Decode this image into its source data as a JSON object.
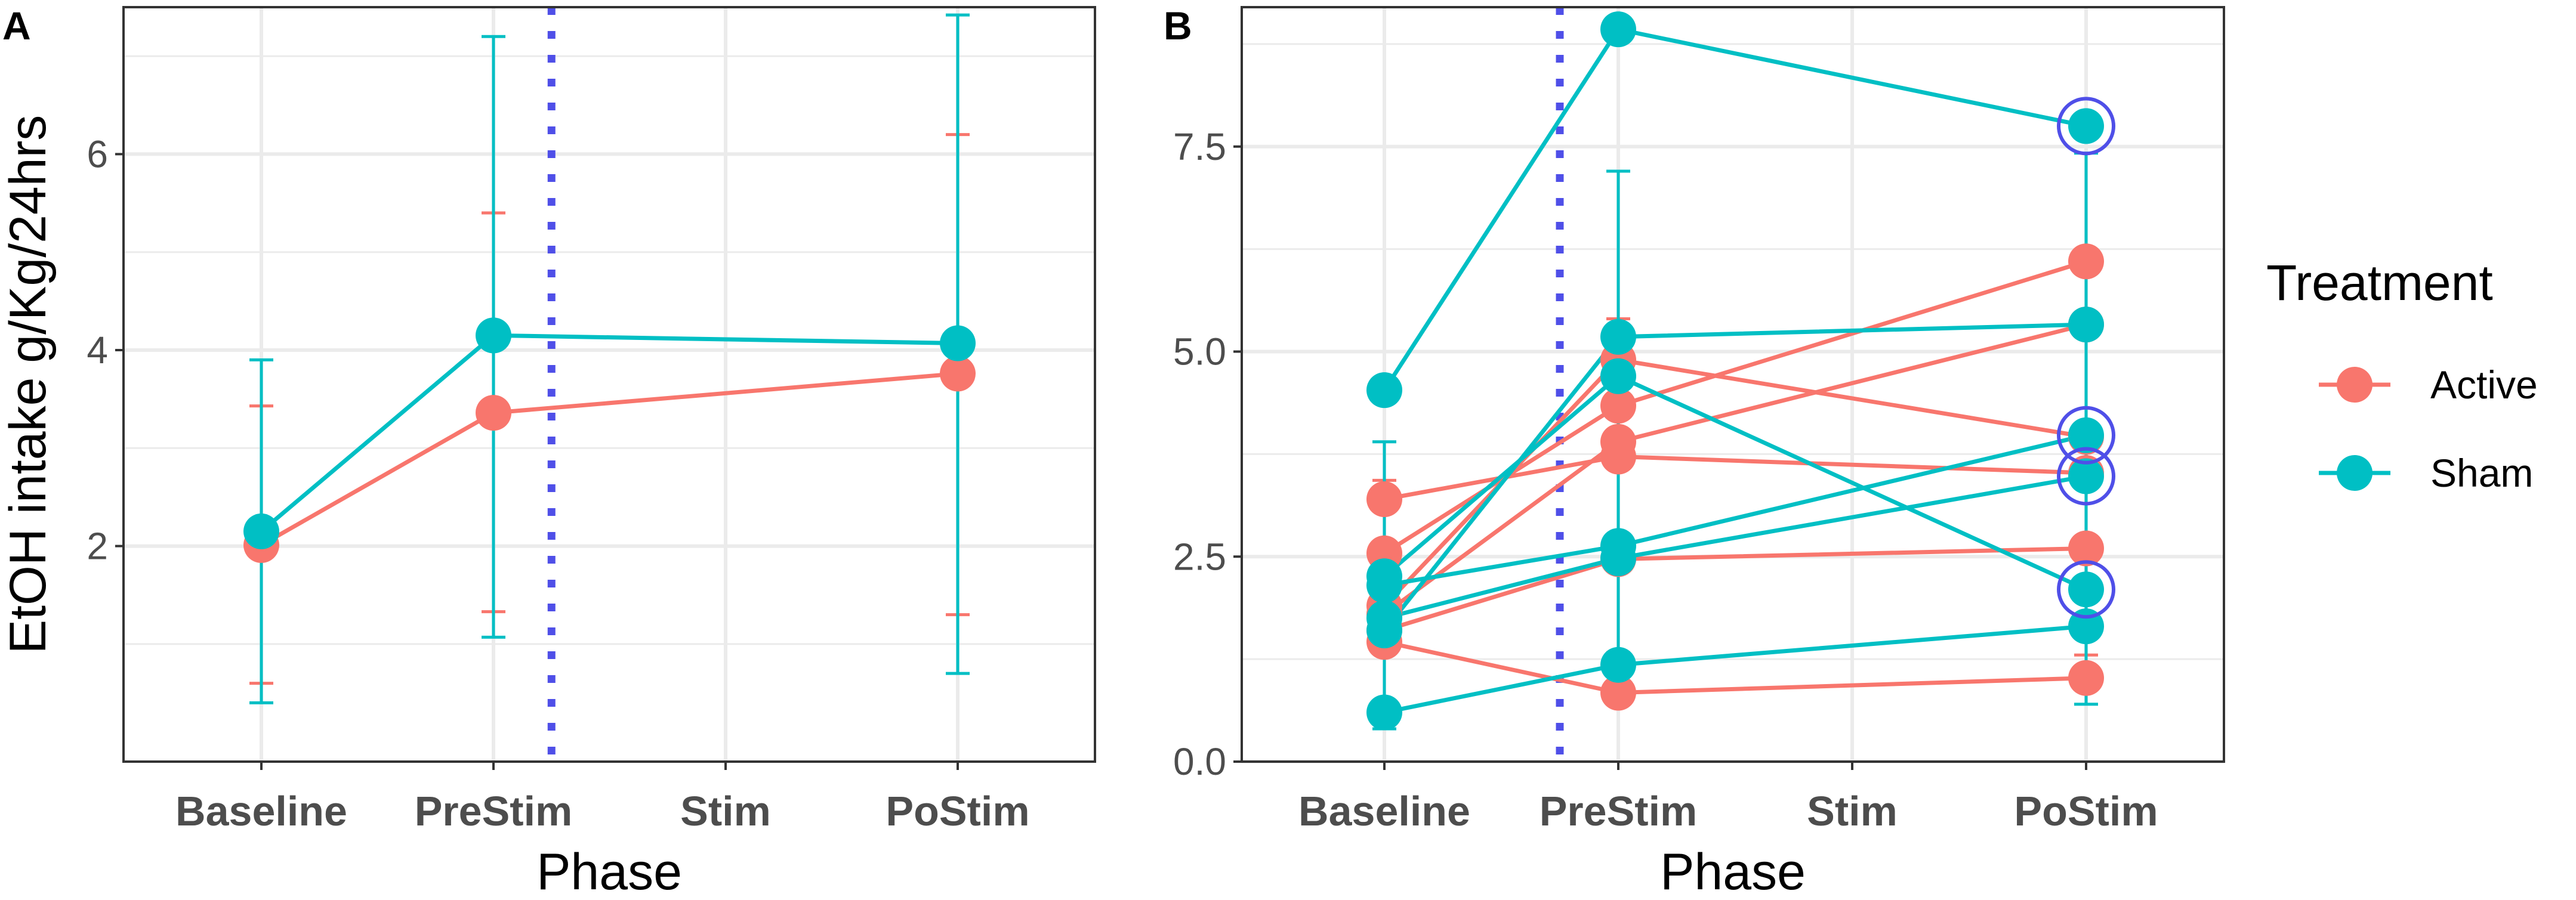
{
  "colors": {
    "active": "#F8766D",
    "sham": "#00BFC4",
    "marker": "#4F4FE8",
    "grid": "#EBEBEB",
    "border": "#333333"
  },
  "legend": {
    "title": "Treatment",
    "entries": [
      {
        "label": "Active",
        "color": "#F8766D"
      },
      {
        "label": "Sham",
        "color": "#00BFC4"
      }
    ]
  },
  "chart_data": [
    {
      "panel": "A",
      "type": "line",
      "xlabel": "Phase",
      "ylabel": "EtOH intake g/Kg/24hrs",
      "categories": [
        "Baseline",
        "PreStim",
        "Stim",
        "PoStim"
      ],
      "ylim": [
        -0.2,
        7.5
      ],
      "yticks": [
        2,
        4,
        6
      ],
      "vline_category": 1.25,
      "series": [
        {
          "name": "Active",
          "color": "#F8766D",
          "points": [
            {
              "x": 0,
              "y": 2.01,
              "lo": 0.6,
              "hi": 3.43
            },
            {
              "x": 1,
              "y": 3.36,
              "lo": 1.33,
              "hi": 5.4
            },
            {
              "x": 3,
              "y": 3.76,
              "lo": 1.3,
              "hi": 6.2
            }
          ]
        },
        {
          "name": "Sham",
          "color": "#00BFC4",
          "points": [
            {
              "x": 0,
              "y": 2.15,
              "lo": 0.4,
              "hi": 3.9
            },
            {
              "x": 1,
              "y": 4.15,
              "lo": 1.07,
              "hi": 7.2
            },
            {
              "x": 3,
              "y": 4.07,
              "lo": 0.7,
              "hi": 7.42
            }
          ]
        }
      ]
    },
    {
      "panel": "B",
      "type": "line",
      "xlabel": "Phase",
      "ylabel": "",
      "categories": [
        "Baseline",
        "PreStim",
        "Stim",
        "PoStim"
      ],
      "ylim": [
        0,
        9.2
      ],
      "yticks": [
        0.0,
        2.5,
        5.0,
        7.5
      ],
      "ytick_labels": [
        "0.0",
        "2.5",
        "5.0",
        "7.5"
      ],
      "vline_category": 0.75,
      "errorbars": [
        {
          "color": "#F8766D",
          "points": [
            {
              "x": 0,
              "lo": 0.6,
              "hi": 3.43
            },
            {
              "x": 1,
              "lo": 1.33,
              "hi": 5.4
            },
            {
              "x": 3,
              "lo": 1.3,
              "hi": 6.2
            }
          ]
        },
        {
          "color": "#00BFC4",
          "points": [
            {
              "x": 0,
              "lo": 0.4,
              "hi": 3.9
            },
            {
              "x": 1,
              "lo": 1.07,
              "hi": 7.2
            },
            {
              "x": 3,
              "lo": 0.7,
              "hi": 7.42
            }
          ]
        }
      ],
      "series": [
        {
          "name": "Active",
          "color": "#F8766D",
          "subjects": [
            {
              "points": [
                {
                  "x": 0,
                  "y": 3.2
                },
                {
                  "x": 1,
                  "y": 3.72
                },
                {
                  "x": 3,
                  "y": 3.52
                }
              ]
            },
            {
              "points": [
                {
                  "x": 0,
                  "y": 2.54
                },
                {
                  "x": 1,
                  "y": 4.34
                },
                {
                  "x": 3,
                  "y": 6.1
                }
              ]
            },
            {
              "points": [
                {
                  "x": 0,
                  "y": 1.9
                },
                {
                  "x": 1,
                  "y": 4.9
                },
                {
                  "x": 3,
                  "y": 3.96
                }
              ]
            },
            {
              "points": [
                {
                  "x": 0,
                  "y": 1.8
                },
                {
                  "x": 1,
                  "y": 3.9
                },
                {
                  "x": 3,
                  "y": 5.33
                }
              ]
            },
            {
              "points": [
                {
                  "x": 0,
                  "y": 1.6
                },
                {
                  "x": 1,
                  "y": 2.47
                },
                {
                  "x": 3,
                  "y": 2.6
                }
              ]
            },
            {
              "points": [
                {
                  "x": 0,
                  "y": 1.46
                },
                {
                  "x": 1,
                  "y": 0.84
                },
                {
                  "x": 3,
                  "y": 1.02
                }
              ]
            }
          ]
        },
        {
          "name": "Sham",
          "color": "#00BFC4",
          "subjects": [
            {
              "points": [
                {
                  "x": 0,
                  "y": 4.53
                },
                {
                  "x": 1,
                  "y": 8.93
                },
                {
                  "x": 3,
                  "y": 7.75
                }
              ],
              "circled": [
                3
              ]
            },
            {
              "points": [
                {
                  "x": 0,
                  "y": 2.26
                },
                {
                  "x": 1,
                  "y": 4.7
                },
                {
                  "x": 3,
                  "y": 2.1
                }
              ],
              "circled": [
                3
              ]
            },
            {
              "points": [
                {
                  "x": 0,
                  "y": 2.15
                },
                {
                  "x": 1,
                  "y": 2.63
                },
                {
                  "x": 3,
                  "y": 3.98
                }
              ],
              "circled": [
                3
              ]
            },
            {
              "points": [
                {
                  "x": 0,
                  "y": 1.75
                },
                {
                  "x": 1,
                  "y": 2.48
                },
                {
                  "x": 3,
                  "y": 3.48
                }
              ],
              "circled": [
                3
              ]
            },
            {
              "points": [
                {
                  "x": 0,
                  "y": 1.6
                },
                {
                  "x": 1,
                  "y": 5.18
                },
                {
                  "x": 3,
                  "y": 5.33
                }
              ]
            },
            {
              "points": [
                {
                  "x": 0,
                  "y": 0.6
                },
                {
                  "x": 1,
                  "y": 1.18
                },
                {
                  "x": 3,
                  "y": 1.65
                }
              ]
            }
          ]
        }
      ]
    }
  ]
}
